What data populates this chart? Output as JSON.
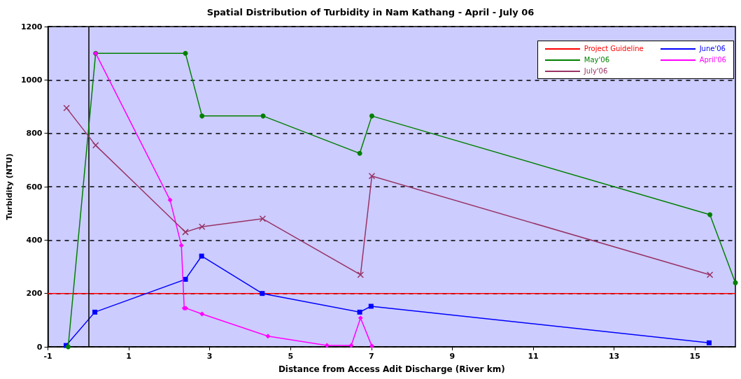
{
  "chart_data": {
    "type": "line",
    "title": "Spatial Distribution of Turbidity in Nam Kathang - April - July 06",
    "xlabel": "Distance from Access Adit Discharge (River km)",
    "ylabel": "Turbidity (NTU)",
    "xlim": [
      -1,
      16
    ],
    "xticks": [
      -1,
      1,
      3,
      5,
      7,
      9,
      11,
      13,
      15
    ],
    "ylim": [
      0,
      1200
    ],
    "yticks": [
      0,
      200,
      400,
      600,
      800,
      1000,
      1200
    ],
    "grid": "y",
    "legend": "top right",
    "line_style": "solid",
    "ref_lines": [
      {
        "axis": "x",
        "value": 0,
        "color": "#000000"
      }
    ],
    "series": [
      {
        "name": "Project Guideline",
        "color": "#ff0000",
        "marker": "none",
        "x": [
          -1,
          16
        ],
        "values": [
          200,
          200
        ]
      },
      {
        "name": "June'06",
        "color": "#0000ff",
        "marker": "square",
        "x": [
          -0.55,
          0.16,
          2.4,
          2.8,
          4.3,
          6.71,
          6.99,
          15.35
        ],
        "values": [
          5,
          130,
          253,
          340,
          200,
          130,
          152,
          15
        ]
      },
      {
        "name": "May'06",
        "color": "#008000",
        "marker": "circle",
        "x": [
          -0.5,
          0.18,
          2.4,
          2.81,
          4.32,
          6.71,
          7.01,
          15.37,
          16
        ],
        "values": [
          0,
          1100,
          1100,
          865,
          865,
          725,
          865,
          495,
          240
        ]
      },
      {
        "name": "April'06",
        "color": "#ff00ff",
        "marker": "diamond",
        "x": [
          0.18,
          2.02,
          2.3,
          2.37,
          2.41,
          2.81,
          4.44,
          5.9,
          6.5,
          6.73,
          7.01
        ],
        "values": [
          1100,
          550,
          380,
          145,
          145,
          123,
          40,
          5,
          5,
          108,
          3
        ]
      },
      {
        "name": "July'06",
        "color": "#993366",
        "marker": "cross",
        "x": [
          -0.54,
          0.18,
          2.4,
          2.81,
          4.31,
          6.73,
          7.01,
          15.37
        ],
        "values": [
          895,
          755,
          430,
          450,
          480,
          270,
          640,
          270
        ]
      }
    ]
  }
}
